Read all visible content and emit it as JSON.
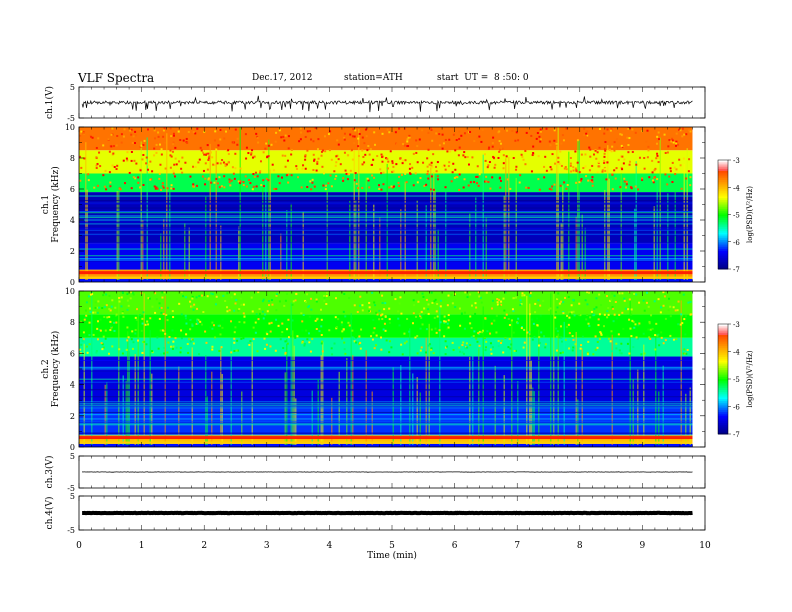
{
  "header": {
    "title": "VLF Spectra",
    "date": "Dec.17, 2012",
    "station": "station=ATH",
    "start": "start  UT =  8 :50: 0"
  },
  "chart_data": [
    {
      "type": "line",
      "ylabel": "ch.1(V)",
      "ylim": [
        -5,
        5
      ],
      "yticks": [
        "5",
        "-5"
      ],
      "xlim": [
        0,
        10
      ],
      "note": "dense noisy waveform near 0 V with frequent downward spikes"
    },
    {
      "type": "heatmap",
      "ylabel_line1": "ch.1",
      "ylabel_line2": "Frequency  (kHz)",
      "ylim": [
        0,
        10
      ],
      "yticks": [
        "0",
        "2",
        "4",
        "6",
        "8",
        "10"
      ],
      "xlim": [
        0,
        9.8
      ],
      "colorbar": {
        "label": "log(PSD)(V²/Hz)",
        "range": [
          -7,
          -3
        ],
        "ticks": [
          "-3",
          "-4",
          "-5",
          "-6",
          "-7"
        ]
      },
      "bands": [
        {
          "f_khz": [
            0,
            0.2
          ],
          "log_psd": -6.3
        },
        {
          "f_khz": [
            0.2,
            0.8
          ],
          "log_psd": -3.8
        },
        {
          "f_khz": [
            0.8,
            2.5
          ],
          "log_psd": -6.4
        },
        {
          "f_khz": [
            2.5,
            5.8
          ],
          "log_psd": -6.7
        },
        {
          "f_khz": [
            5.8,
            7.0
          ],
          "log_psd": -5.2
        },
        {
          "f_khz": [
            7.0,
            8.5
          ],
          "log_psd": -4.4
        },
        {
          "f_khz": [
            8.5,
            10
          ],
          "log_psd": -3.6
        }
      ]
    },
    {
      "type": "heatmap",
      "ylabel_line1": "ch.2",
      "ylabel_line2": "Frequency  (kHz)",
      "ylim": [
        0,
        10
      ],
      "yticks": [
        "0",
        "2",
        "4",
        "6",
        "8",
        "10"
      ],
      "xlim": [
        0,
        9.8
      ],
      "colorbar": {
        "label": "log(PSD)(V²/Hz)",
        "range": [
          -7,
          -3
        ],
        "ticks": [
          "-3",
          "-4",
          "-5",
          "-6",
          "-7"
        ]
      },
      "bands": [
        {
          "f_khz": [
            0,
            0.2
          ],
          "log_psd": -6.3
        },
        {
          "f_khz": [
            0.2,
            0.8
          ],
          "log_psd": -4.0
        },
        {
          "f_khz": [
            0.8,
            2.5
          ],
          "log_psd": -6.2
        },
        {
          "f_khz": [
            2.5,
            5.8
          ],
          "log_psd": -6.5
        },
        {
          "f_khz": [
            5.8,
            7.0
          ],
          "log_psd": -5.4
        },
        {
          "f_khz": [
            7.0,
            8.5
          ],
          "log_psd": -5.0
        },
        {
          "f_khz": [
            8.5,
            10
          ],
          "log_psd": -4.8
        }
      ]
    },
    {
      "type": "line",
      "ylabel": "ch.3(V)",
      "ylim": [
        -5,
        5
      ],
      "yticks": [
        "5",
        "-5"
      ],
      "xlim": [
        0,
        10
      ],
      "note": "flat trace near 0 V"
    },
    {
      "type": "line",
      "ylabel": "ch.4(V)",
      "ylim": [
        -5,
        5
      ],
      "yticks": [
        "5",
        "-5"
      ],
      "xlim": [
        0,
        10
      ],
      "note": "thick flat trace near 0 V"
    }
  ],
  "xaxis": {
    "label": "Time  (min)",
    "ticks": [
      "0",
      "1",
      "2",
      "3",
      "4",
      "5",
      "6",
      "7",
      "8",
      "9",
      "10"
    ]
  },
  "colors": {
    "colormap": [
      "#00007f",
      "#0000ff",
      "#00ffff",
      "#00ff00",
      "#ffff00",
      "#ff8000",
      "#ff0000",
      "#ffffff"
    ],
    "trace": "#000000"
  }
}
